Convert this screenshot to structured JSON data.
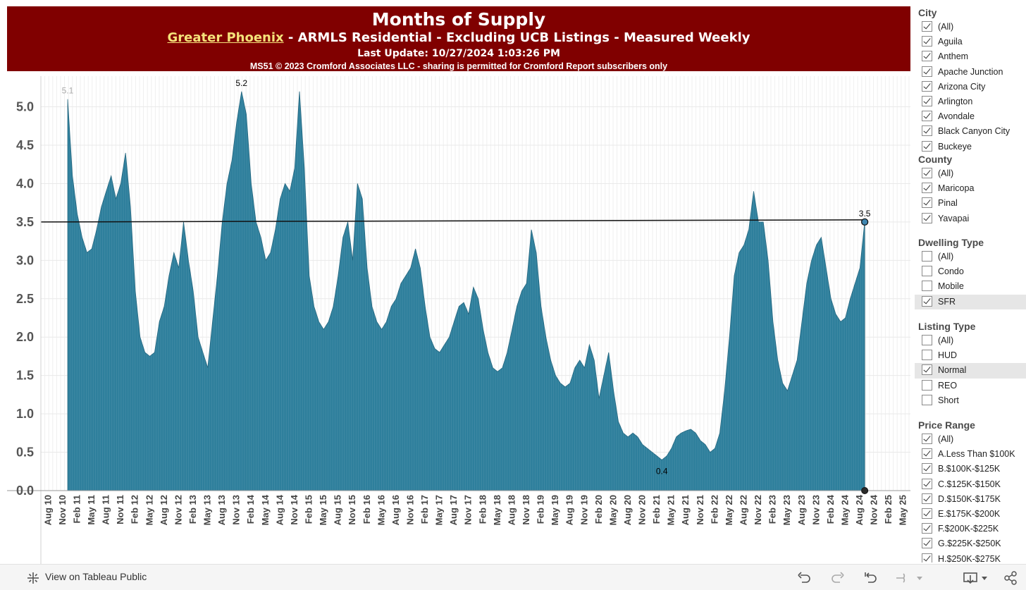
{
  "header": {
    "title": "Months of Supply",
    "region": "Greater Phoenix",
    "subtitle_rest": " - ARMLS Residential - Excluding UCB Listings - Measured Weekly",
    "last_update": "Last Update: 10/27/2024 1:03:26 PM",
    "copyright": "MS51 © 2023 Cromford Associates LLC - sharing is permitted for Cromford Report subscribers only",
    "bg_color": "#800000",
    "region_color": "#f4e27a"
  },
  "chart_data": {
    "type": "area",
    "title": "Months of Supply",
    "xlabel": "",
    "ylabel": "",
    "ylim": [
      0,
      5.4
    ],
    "y_ticks": [
      "0.0",
      "0.5",
      "1.0",
      "1.5",
      "2.0",
      "2.5",
      "3.0",
      "3.5",
      "4.0",
      "4.5",
      "5.0"
    ],
    "x_ticks": [
      "Aug 10",
      "Nov 10",
      "Feb 11",
      "May 11",
      "Aug 11",
      "Nov 11",
      "Feb 12",
      "May 12",
      "Aug 12",
      "Nov 12",
      "Feb 13",
      "May 13",
      "Aug 13",
      "Nov 13",
      "Feb 14",
      "May 14",
      "Aug 14",
      "Nov 14",
      "Feb 15",
      "May 15",
      "Aug 15",
      "Nov 15",
      "Feb 16",
      "May 16",
      "Aug 16",
      "Nov 16",
      "Feb 17",
      "May 17",
      "Aug 17",
      "Nov 17",
      "Feb 18",
      "May 18",
      "Aug 18",
      "Nov 18",
      "Feb 19",
      "May 19",
      "Aug 19",
      "Nov 19",
      "Feb 20",
      "May 20",
      "Aug 20",
      "Nov 20",
      "Feb 21",
      "May 21",
      "Aug 21",
      "Nov 21",
      "Feb 22",
      "May 22",
      "Aug 22",
      "Nov 22",
      "Feb 23",
      "May 23",
      "Aug 23",
      "Nov 23",
      "Feb 24",
      "May 24",
      "Aug 24",
      "Nov 24",
      "Feb 25",
      "May 25"
    ],
    "x_start": "Aug 2010",
    "x_end": "Aug 2025",
    "series_color": "#2e7f9c",
    "reference_line": 3.5,
    "grid": true,
    "points": [
      [
        "2011-01",
        5.1
      ],
      [
        "2011-02",
        4.1
      ],
      [
        "2011-03",
        3.6
      ],
      [
        "2011-04",
        3.3
      ],
      [
        "2011-05",
        3.1
      ],
      [
        "2011-06",
        3.15
      ],
      [
        "2011-07",
        3.4
      ],
      [
        "2011-08",
        3.7
      ],
      [
        "2011-09",
        3.9
      ],
      [
        "2011-10",
        4.1
      ],
      [
        "2011-11",
        3.8
      ],
      [
        "2011-12",
        4.0
      ],
      [
        "2012-01",
        4.4
      ],
      [
        "2012-02",
        3.7
      ],
      [
        "2012-03",
        2.6
      ],
      [
        "2012-04",
        2.0
      ],
      [
        "2012-05",
        1.8
      ],
      [
        "2012-06",
        1.75
      ],
      [
        "2012-07",
        1.8
      ],
      [
        "2012-08",
        2.2
      ],
      [
        "2012-09",
        2.4
      ],
      [
        "2012-10",
        2.8
      ],
      [
        "2012-11",
        3.1
      ],
      [
        "2012-12",
        2.9
      ],
      [
        "2013-01",
        3.5
      ],
      [
        "2013-02",
        3.0
      ],
      [
        "2013-03",
        2.6
      ],
      [
        "2013-04",
        2.0
      ],
      [
        "2013-05",
        1.8
      ],
      [
        "2013-06",
        1.6
      ],
      [
        "2013-07",
        2.2
      ],
      [
        "2013-08",
        2.8
      ],
      [
        "2013-09",
        3.5
      ],
      [
        "2013-10",
        4.0
      ],
      [
        "2013-11",
        4.3
      ],
      [
        "2013-12",
        4.8
      ],
      [
        "2014-01",
        5.2
      ],
      [
        "2014-02",
        4.9
      ],
      [
        "2014-03",
        4.0
      ],
      [
        "2014-04",
        3.5
      ],
      [
        "2014-05",
        3.3
      ],
      [
        "2014-06",
        3.0
      ],
      [
        "2014-07",
        3.1
      ],
      [
        "2014-08",
        3.4
      ],
      [
        "2014-09",
        3.8
      ],
      [
        "2014-10",
        4.0
      ],
      [
        "2014-11",
        3.9
      ],
      [
        "2014-12",
        4.2
      ],
      [
        "2015-01",
        5.2
      ],
      [
        "2015-02",
        4.2
      ],
      [
        "2015-03",
        2.8
      ],
      [
        "2015-04",
        2.4
      ],
      [
        "2015-05",
        2.2
      ],
      [
        "2015-06",
        2.1
      ],
      [
        "2015-07",
        2.2
      ],
      [
        "2015-08",
        2.4
      ],
      [
        "2015-09",
        2.8
      ],
      [
        "2015-10",
        3.3
      ],
      [
        "2015-11",
        3.5
      ],
      [
        "2015-12",
        3.0
      ],
      [
        "2016-01",
        4.0
      ],
      [
        "2016-02",
        3.8
      ],
      [
        "2016-03",
        2.9
      ],
      [
        "2016-04",
        2.4
      ],
      [
        "2016-05",
        2.2
      ],
      [
        "2016-06",
        2.1
      ],
      [
        "2016-07",
        2.2
      ],
      [
        "2016-08",
        2.4
      ],
      [
        "2016-09",
        2.5
      ],
      [
        "2016-10",
        2.7
      ],
      [
        "2016-11",
        2.8
      ],
      [
        "2016-12",
        2.9
      ],
      [
        "2017-01",
        3.15
      ],
      [
        "2017-02",
        2.9
      ],
      [
        "2017-03",
        2.4
      ],
      [
        "2017-04",
        2.0
      ],
      [
        "2017-05",
        1.85
      ],
      [
        "2017-06",
        1.8
      ],
      [
        "2017-07",
        1.9
      ],
      [
        "2017-08",
        2.0
      ],
      [
        "2017-09",
        2.2
      ],
      [
        "2017-10",
        2.4
      ],
      [
        "2017-11",
        2.45
      ],
      [
        "2017-12",
        2.3
      ],
      [
        "2018-01",
        2.65
      ],
      [
        "2018-02",
        2.5
      ],
      [
        "2018-03",
        2.1
      ],
      [
        "2018-04",
        1.8
      ],
      [
        "2018-05",
        1.6
      ],
      [
        "2018-06",
        1.55
      ],
      [
        "2018-07",
        1.6
      ],
      [
        "2018-08",
        1.8
      ],
      [
        "2018-09",
        2.1
      ],
      [
        "2018-10",
        2.4
      ],
      [
        "2018-11",
        2.6
      ],
      [
        "2018-12",
        2.7
      ],
      [
        "2019-01",
        3.4
      ],
      [
        "2019-02",
        3.1
      ],
      [
        "2019-03",
        2.4
      ],
      [
        "2019-04",
        2.0
      ],
      [
        "2019-05",
        1.7
      ],
      [
        "2019-06",
        1.5
      ],
      [
        "2019-07",
        1.4
      ],
      [
        "2019-08",
        1.35
      ],
      [
        "2019-09",
        1.4
      ],
      [
        "2019-10",
        1.6
      ],
      [
        "2019-11",
        1.7
      ],
      [
        "2019-12",
        1.6
      ],
      [
        "2020-01",
        1.9
      ],
      [
        "2020-02",
        1.7
      ],
      [
        "2020-03",
        1.2
      ],
      [
        "2020-04",
        1.5
      ],
      [
        "2020-05",
        1.8
      ],
      [
        "2020-06",
        1.3
      ],
      [
        "2020-07",
        0.9
      ],
      [
        "2020-08",
        0.75
      ],
      [
        "2020-09",
        0.7
      ],
      [
        "2020-10",
        0.75
      ],
      [
        "2020-11",
        0.7
      ],
      [
        "2020-12",
        0.6
      ],
      [
        "2021-01",
        0.55
      ],
      [
        "2021-02",
        0.5
      ],
      [
        "2021-03",
        0.45
      ],
      [
        "2021-04",
        0.4
      ],
      [
        "2021-05",
        0.45
      ],
      [
        "2021-06",
        0.55
      ],
      [
        "2021-07",
        0.7
      ],
      [
        "2021-08",
        0.75
      ],
      [
        "2021-09",
        0.78
      ],
      [
        "2021-10",
        0.8
      ],
      [
        "2021-11",
        0.75
      ],
      [
        "2021-12",
        0.65
      ],
      [
        "2022-01",
        0.6
      ],
      [
        "2022-02",
        0.5
      ],
      [
        "2022-03",
        0.55
      ],
      [
        "2022-04",
        0.75
      ],
      [
        "2022-05",
        1.3
      ],
      [
        "2022-06",
        2.0
      ],
      [
        "2022-07",
        2.8
      ],
      [
        "2022-08",
        3.1
      ],
      [
        "2022-09",
        3.2
      ],
      [
        "2022-10",
        3.4
      ],
      [
        "2022-11",
        3.9
      ],
      [
        "2022-12",
        3.5
      ],
      [
        "2023-01",
        3.5
      ],
      [
        "2023-02",
        3.0
      ],
      [
        "2023-03",
        2.2
      ],
      [
        "2023-04",
        1.7
      ],
      [
        "2023-05",
        1.4
      ],
      [
        "2023-06",
        1.3
      ],
      [
        "2023-07",
        1.5
      ],
      [
        "2023-08",
        1.7
      ],
      [
        "2023-09",
        2.2
      ],
      [
        "2023-10",
        2.7
      ],
      [
        "2023-11",
        3.0
      ],
      [
        "2023-12",
        3.2
      ],
      [
        "2024-01",
        3.3
      ],
      [
        "2024-02",
        2.9
      ],
      [
        "2024-03",
        2.5
      ],
      [
        "2024-04",
        2.3
      ],
      [
        "2024-05",
        2.2
      ],
      [
        "2024-06",
        2.25
      ],
      [
        "2024-07",
        2.5
      ],
      [
        "2024-08",
        2.7
      ],
      [
        "2024-09",
        2.9
      ],
      [
        "2024-10",
        3.5
      ]
    ],
    "annotations": [
      {
        "label": "5.1",
        "x": "2011-01",
        "y": 5.1,
        "color": "#aaaaaa"
      },
      {
        "label": "5.2",
        "x": "2014-01",
        "y": 5.2,
        "color": "#000000"
      },
      {
        "label": "0.4",
        "x": "2021-04",
        "y": 0.4,
        "color": "#000000"
      },
      {
        "label": "3.5",
        "x": "2024-10",
        "y": 3.5,
        "color": "#000000"
      }
    ]
  },
  "filters": [
    {
      "title": "City",
      "items": [
        {
          "label": "(All)",
          "checked": true
        },
        {
          "label": "Aguila",
          "checked": true
        },
        {
          "label": "Anthem",
          "checked": true
        },
        {
          "label": "Apache Junction",
          "checked": true
        },
        {
          "label": "Arizona City",
          "checked": true
        },
        {
          "label": "Arlington",
          "checked": true
        },
        {
          "label": "Avondale",
          "checked": true
        },
        {
          "label": "Black Canyon City",
          "checked": true
        },
        {
          "label": "Buckeye",
          "checked": true
        }
      ]
    },
    {
      "title": "County",
      "items": [
        {
          "label": "(All)",
          "checked": true
        },
        {
          "label": "Maricopa",
          "checked": true
        },
        {
          "label": "Pinal",
          "checked": true
        },
        {
          "label": "Yavapai",
          "checked": true
        }
      ]
    },
    {
      "title": "Dwelling Type",
      "items": [
        {
          "label": "(All)",
          "checked": false
        },
        {
          "label": "Condo",
          "checked": false
        },
        {
          "label": "Mobile",
          "checked": false
        },
        {
          "label": "SFR",
          "checked": true,
          "selected": true
        }
      ]
    },
    {
      "title": "Listing Type",
      "items": [
        {
          "label": "(All)",
          "checked": false
        },
        {
          "label": "HUD",
          "checked": false
        },
        {
          "label": "Normal",
          "checked": true,
          "selected": true
        },
        {
          "label": "REO",
          "checked": false
        },
        {
          "label": "Short",
          "checked": false
        }
      ]
    },
    {
      "title": "Price Range",
      "items": [
        {
          "label": "(All)",
          "checked": true
        },
        {
          "label": "A.Less Than $100K",
          "checked": true
        },
        {
          "label": "B.$100K-$125K",
          "checked": true
        },
        {
          "label": "C.$125K-$150K",
          "checked": true
        },
        {
          "label": "D.$150K-$175K",
          "checked": true
        },
        {
          "label": "E.$175K-$200K",
          "checked": true
        },
        {
          "label": "F.$200K-$225K",
          "checked": true
        },
        {
          "label": "G.$225K-$250K",
          "checked": true
        },
        {
          "label": "H.$250K-$275K",
          "checked": true
        }
      ]
    }
  ],
  "footer": {
    "view_link": "View on Tableau Public",
    "icons": [
      "undo-icon",
      "redo-icon",
      "revert-icon",
      "pause-icon",
      "download-icon",
      "share-icon"
    ]
  }
}
